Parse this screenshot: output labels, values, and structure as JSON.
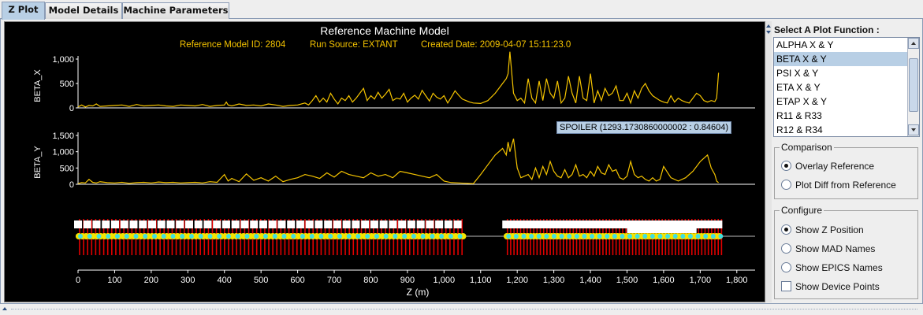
{
  "tabs": [
    {
      "label": "Z Plot",
      "active": true
    },
    {
      "label": "Model Details",
      "active": false
    },
    {
      "label": "Machine Parameters",
      "active": false
    }
  ],
  "plot": {
    "title": "Reference Machine Model",
    "subtitle": {
      "model_id": "Reference Model ID: 2804",
      "run_source": "Run Source: EXTANT",
      "created": "Created Date: 2009-04-07 15:11:23.0"
    },
    "title_color": "#ffffff",
    "subtitle_color": "#f5c400",
    "trace_color": "#f5c400",
    "tooltip": "SPOILER (1293.1730860000002 : 0.84604)",
    "xlabel": "Z (m)"
  },
  "chart_data": [
    {
      "type": "line",
      "ylabel": "BETA_X",
      "y_ticks": [
        "0",
        "500",
        "1,000"
      ],
      "ylim": [
        0,
        1000
      ],
      "xlim": [
        0,
        1850
      ],
      "series": [
        {
          "x": [
            0,
            10,
            20,
            30,
            40,
            50,
            60,
            80,
            100,
            120,
            140,
            160,
            180,
            200,
            220,
            240,
            260,
            280,
            300,
            320,
            340,
            360,
            380,
            400,
            405,
            410,
            420,
            440,
            460,
            480,
            500,
            520,
            540,
            560,
            580,
            600,
            620,
            630,
            640,
            650,
            660,
            670,
            680,
            690,
            700,
            710,
            720,
            730,
            740,
            750,
            760,
            770,
            780,
            790,
            800,
            810,
            820,
            830,
            840,
            850,
            860,
            870,
            880,
            890,
            900,
            910,
            920,
            930,
            940,
            950,
            960,
            970,
            980,
            990,
            1000,
            1010,
            1020,
            1030,
            1040,
            1050,
            1060,
            1070,
            1080,
            1100,
            1120,
            1140,
            1160,
            1170,
            1175,
            1180,
            1190,
            1200,
            1210,
            1220,
            1230,
            1240,
            1250,
            1260,
            1270,
            1280,
            1290,
            1300,
            1310,
            1320,
            1330,
            1340,
            1350,
            1360,
            1370,
            1380,
            1390,
            1400,
            1410,
            1420,
            1430,
            1440,
            1450,
            1460,
            1470,
            1480,
            1490,
            1500,
            1510,
            1520,
            1530,
            1540,
            1550,
            1560,
            1570,
            1580,
            1590,
            1600,
            1610,
            1620,
            1630,
            1640,
            1650,
            1660,
            1670,
            1680,
            1690,
            1700,
            1710,
            1720,
            1730,
            1740,
            1745,
            1750
          ],
          "y": [
            20,
            60,
            20,
            50,
            40,
            80,
            30,
            40,
            50,
            60,
            30,
            70,
            40,
            50,
            60,
            40,
            30,
            60,
            50,
            40,
            70,
            30,
            50,
            60,
            120,
            60,
            40,
            80,
            50,
            60,
            40,
            80,
            60,
            30,
            50,
            60,
            100,
            60,
            150,
            250,
            120,
            200,
            120,
            300,
            180,
            80,
            200,
            150,
            250,
            120,
            200,
            300,
            400,
            150,
            250,
            180,
            320,
            200,
            280,
            380,
            150,
            200,
            180,
            300,
            120,
            200,
            260,
            180,
            360,
            250,
            140,
            300,
            220,
            180,
            250,
            100,
            220,
            350,
            260,
            180,
            150,
            120,
            100,
            90,
            150,
            300,
            500,
            600,
            700,
            1150,
            300,
            150,
            200,
            100,
            600,
            200,
            100,
            550,
            150,
            600,
            300,
            200,
            550,
            100,
            200,
            650,
            300,
            100,
            650,
            200,
            150,
            700,
            100,
            350,
            150,
            400,
            250,
            300,
            450,
            150,
            150,
            300,
            100,
            350,
            200,
            400,
            500,
            350,
            250,
            200,
            150,
            120,
            100,
            250,
            120,
            200,
            150,
            120,
            100,
            200,
            300,
            250,
            150,
            120,
            150,
            130,
            200,
            720
          ]
        }
      ]
    },
    {
      "type": "line",
      "ylabel": "BETA_Y",
      "y_ticks": [
        "0",
        "500",
        "1,000",
        "1,500"
      ],
      "ylim": [
        0,
        1500
      ],
      "xlim": [
        0,
        1850
      ],
      "series": [
        {
          "x": [
            0,
            10,
            20,
            30,
            40,
            50,
            60,
            80,
            100,
            120,
            140,
            160,
            180,
            200,
            220,
            240,
            260,
            280,
            300,
            320,
            340,
            360,
            380,
            400,
            410,
            420,
            440,
            460,
            480,
            500,
            520,
            540,
            560,
            580,
            600,
            620,
            640,
            660,
            680,
            700,
            720,
            740,
            760,
            780,
            800,
            820,
            840,
            860,
            880,
            900,
            920,
            940,
            960,
            980,
            1000,
            1020,
            1040,
            1060,
            1080,
            1100,
            1120,
            1140,
            1160,
            1170,
            1175,
            1180,
            1190,
            1200,
            1210,
            1220,
            1230,
            1240,
            1250,
            1260,
            1270,
            1280,
            1290,
            1300,
            1310,
            1320,
            1330,
            1340,
            1350,
            1360,
            1370,
            1380,
            1390,
            1400,
            1410,
            1420,
            1430,
            1440,
            1450,
            1460,
            1470,
            1480,
            1490,
            1500,
            1510,
            1520,
            1530,
            1540,
            1550,
            1560,
            1570,
            1580,
            1590,
            1600,
            1620,
            1640,
            1660,
            1680,
            1700,
            1720,
            1730,
            1740,
            1745,
            1750
          ],
          "y": [
            20,
            50,
            40,
            150,
            60,
            40,
            80,
            50,
            40,
            60,
            30,
            50,
            60,
            40,
            70,
            50,
            60,
            40,
            50,
            60,
            40,
            80,
            60,
            300,
            100,
            180,
            80,
            320,
            120,
            200,
            100,
            250,
            80,
            150,
            200,
            300,
            250,
            180,
            350,
            220,
            400,
            300,
            250,
            200,
            350,
            250,
            300,
            200,
            400,
            350,
            300,
            250,
            200,
            300,
            100,
            50,
            40,
            30,
            20,
            300,
            600,
            900,
            1100,
            900,
            1300,
            1000,
            1400,
            500,
            200,
            250,
            300,
            150,
            500,
            200,
            550,
            300,
            700,
            400,
            250,
            200,
            450,
            200,
            300,
            600,
            250,
            300,
            200,
            400,
            250,
            550,
            350,
            300,
            600,
            400,
            450,
            200,
            150,
            250,
            700,
            300,
            200,
            250,
            150,
            100,
            200,
            100,
            150,
            550,
            200,
            100,
            200,
            400,
            700,
            900,
            500,
            300,
            100,
            50
          ]
        }
      ]
    }
  ],
  "x_ticks": [
    "0",
    "100",
    "200",
    "300",
    "400",
    "500",
    "600",
    "700",
    "800",
    "900",
    "1,000",
    "1,100",
    "1,200",
    "1,300",
    "1,400",
    "1,500",
    "1,600",
    "1,700",
    "1,800"
  ],
  "panel": {
    "title": "Select A Plot Function :",
    "functions": [
      "ALPHA X & Y",
      "BETA X & Y",
      "PSI X & Y",
      "ETA X & Y",
      "ETAP X & Y",
      "R11 & R33",
      "R12 & R34"
    ],
    "selected_index": 1,
    "comparison": {
      "title": "Comparison",
      "options": [
        {
          "label": "Overlay Reference",
          "checked": true
        },
        {
          "label": "Plot Diff from Reference",
          "checked": false
        }
      ]
    },
    "configure": {
      "title": "Configure",
      "options": [
        {
          "label": "Show Z Position",
          "type": "radio",
          "checked": true
        },
        {
          "label": "Show MAD Names",
          "type": "radio",
          "checked": false
        },
        {
          "label": "Show EPICS Names",
          "type": "radio",
          "checked": false
        },
        {
          "label": "Show Device Points",
          "type": "check",
          "checked": false
        }
      ]
    }
  }
}
